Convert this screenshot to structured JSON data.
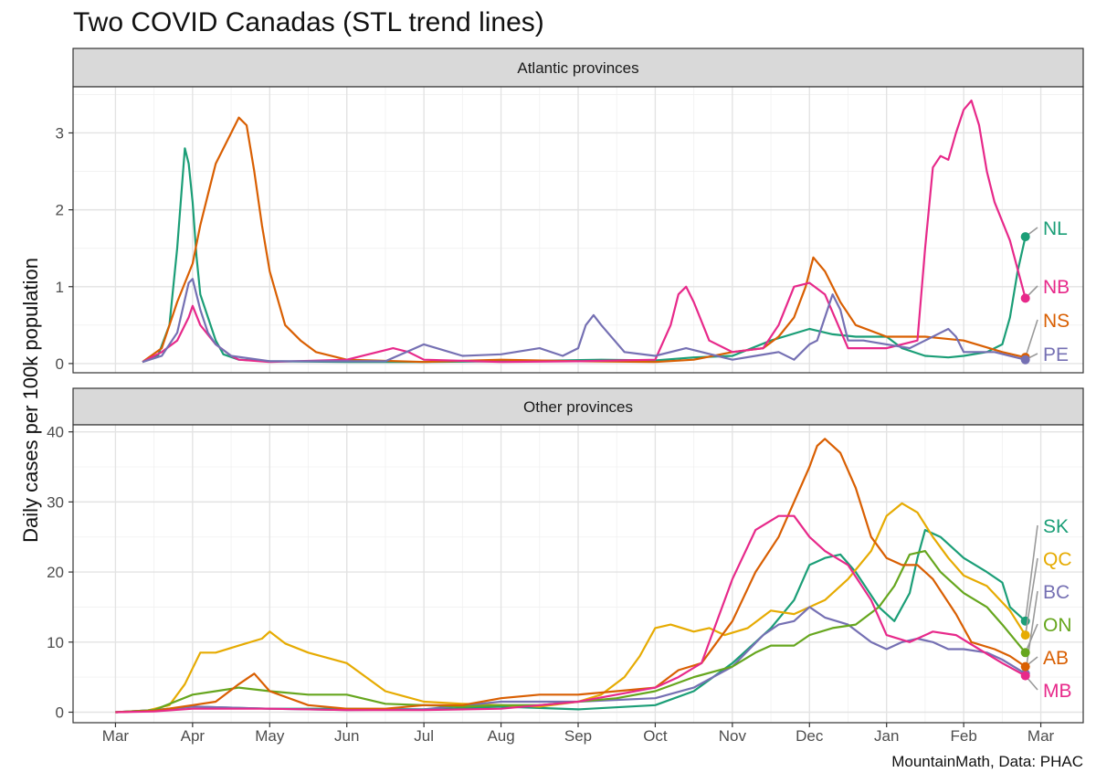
{
  "title": "Two COVID Canadas (STL trend lines)",
  "ylabel": "Daily cases per 100k population",
  "caption": "MountainMath, Data: PHAC",
  "chart_data": {
    "type": "line",
    "x_tick_labels": [
      "Mar",
      "Apr",
      "May",
      "Jun",
      "Jul",
      "Aug",
      "Sep",
      "Oct",
      "Nov",
      "Dec",
      "Jan",
      "Feb",
      "Mar"
    ],
    "grid": true,
    "panels": [
      {
        "strip": "Atlantic provinces",
        "ylim": [
          -0.12,
          3.6
        ],
        "y_ticks": [
          0,
          1,
          2,
          3
        ],
        "series": [
          {
            "name": "NL",
            "color": "#1b9e77",
            "x": [
              0.35,
              0.55,
              0.7,
              0.8,
              0.9,
              0.95,
              1.0,
              1.05,
              1.1,
              1.2,
              1.3,
              1.4,
              1.6,
              2,
              3,
              4,
              5,
              5.8,
              6.3,
              7,
              7.5,
              8,
              8.5,
              9,
              9.3,
              9.6,
              10,
              10.2,
              10.5,
              10.8,
              11,
              11.3,
              11.5,
              11.6,
              11.7,
              11.8
            ],
            "y": [
              0.02,
              0.1,
              0.5,
              1.5,
              2.8,
              2.6,
              2.1,
              1.4,
              0.9,
              0.6,
              0.3,
              0.12,
              0.05,
              0.03,
              0.02,
              0.02,
              0.03,
              0.04,
              0.05,
              0.04,
              0.08,
              0.1,
              0.3,
              0.45,
              0.38,
              0.35,
              0.35,
              0.2,
              0.1,
              0.08,
              0.1,
              0.15,
              0.25,
              0.6,
              1.2,
              1.65
            ]
          },
          {
            "name": "NS",
            "color": "#d95f02",
            "x": [
              0.35,
              0.6,
              0.8,
              1.0,
              1.1,
              1.2,
              1.3,
              1.5,
              1.6,
              1.7,
              1.8,
              1.9,
              2.0,
              2.2,
              2.4,
              2.6,
              3,
              4,
              5,
              6,
              7,
              7.5,
              8,
              8.4,
              8.6,
              8.8,
              8.95,
              9.05,
              9.2,
              9.4,
              9.6,
              10,
              10.5,
              11,
              11.5,
              11.8
            ],
            "y": [
              0.02,
              0.2,
              0.8,
              1.3,
              1.8,
              2.2,
              2.6,
              3.0,
              3.2,
              3.1,
              2.5,
              1.8,
              1.2,
              0.5,
              0.3,
              0.15,
              0.05,
              0.02,
              0.05,
              0.03,
              0.02,
              0.05,
              0.15,
              0.2,
              0.35,
              0.6,
              1.0,
              1.38,
              1.2,
              0.8,
              0.5,
              0.35,
              0.35,
              0.3,
              0.15,
              0.08
            ]
          },
          {
            "name": "NB",
            "color": "#e7298a",
            "x": [
              0.35,
              0.6,
              0.8,
              0.95,
              1.0,
              1.1,
              1.3,
              1.5,
              1.6,
              2,
              3,
              3.4,
              3.6,
              3.8,
              4,
              5,
              6,
              7,
              7.2,
              7.3,
              7.4,
              7.5,
              7.7,
              8,
              8.4,
              8.6,
              8.8,
              9.0,
              9.2,
              9.5,
              10,
              10.4,
              10.5,
              10.6,
              10.7,
              10.8,
              10.9,
              11,
              11.1,
              11.2,
              11.3,
              11.4,
              11.6,
              11.8
            ],
            "y": [
              0.02,
              0.15,
              0.3,
              0.6,
              0.75,
              0.5,
              0.25,
              0.1,
              0.05,
              0.02,
              0.05,
              0.15,
              0.2,
              0.15,
              0.05,
              0.02,
              0.03,
              0.05,
              0.5,
              0.9,
              1.0,
              0.8,
              0.3,
              0.15,
              0.2,
              0.5,
              1.0,
              1.05,
              0.9,
              0.2,
              0.2,
              0.3,
              1.5,
              2.55,
              2.7,
              2.65,
              3.0,
              3.3,
              3.42,
              3.1,
              2.5,
              2.1,
              1.6,
              0.85
            ]
          },
          {
            "name": "PE",
            "color": "#7570b3",
            "x": [
              0.35,
              0.6,
              0.8,
              0.95,
              1.0,
              1.1,
              1.2,
              1.3,
              1.5,
              2,
              3,
              3.5,
              4,
              4.5,
              5,
              5.5,
              5.8,
              6,
              6.1,
              6.2,
              6.3,
              6.6,
              7,
              7.4,
              7.8,
              8,
              8.3,
              8.6,
              8.8,
              9.0,
              9.1,
              9.2,
              9.3,
              9.4,
              9.5,
              9.7,
              10,
              10.3,
              10.5,
              10.7,
              10.8,
              10.9,
              11,
              11.2,
              11.4,
              11.6,
              11.8
            ],
            "y": [
              0.02,
              0.1,
              0.4,
              1.05,
              1.1,
              0.7,
              0.4,
              0.25,
              0.1,
              0.03,
              0.03,
              0.03,
              0.25,
              0.1,
              0.12,
              0.2,
              0.1,
              0.2,
              0.5,
              0.63,
              0.5,
              0.15,
              0.1,
              0.2,
              0.1,
              0.05,
              0.1,
              0.15,
              0.05,
              0.25,
              0.3,
              0.6,
              0.9,
              0.7,
              0.3,
              0.3,
              0.25,
              0.2,
              0.3,
              0.4,
              0.45,
              0.35,
              0.15,
              0.15,
              0.15,
              0.1,
              0.05
            ]
          }
        ]
      },
      {
        "strip": "Other provinces",
        "ylim": [
          -1.5,
          41
        ],
        "y_ticks": [
          0,
          10,
          20,
          30,
          40
        ],
        "series": [
          {
            "name": "SK",
            "color": "#1b9e77",
            "x": [
              0,
              0.5,
              1,
              2,
              3,
              4,
              5,
              6,
              7,
              7.5,
              8,
              8.5,
              8.8,
              9,
              9.2,
              9.4,
              9.6,
              9.9,
              10.1,
              10.3,
              10.4,
              10.5,
              10.7,
              11,
              11.3,
              11.5,
              11.6,
              11.8
            ],
            "y": [
              0,
              0.3,
              0.8,
              0.5,
              0.5,
              0.4,
              0.8,
              0.4,
              1,
              3,
              7,
              12,
              16,
              21,
              22,
              22.5,
              20,
              15,
              13,
              17,
              22,
              26,
              25,
              22,
              20,
              18.5,
              15,
              13
            ]
          },
          {
            "name": "QC",
            "color": "#e6ab02",
            "x": [
              0,
              0.4,
              0.7,
              0.9,
              1.1,
              1.3,
              1.6,
              1.9,
              2.0,
              2.2,
              2.5,
              3,
              3.5,
              4,
              4.5,
              5,
              5.5,
              6,
              6.3,
              6.6,
              6.8,
              7,
              7.2,
              7.5,
              7.7,
              7.9,
              8.2,
              8.5,
              8.8,
              9.2,
              9.5,
              9.8,
              10.0,
              10.2,
              10.4,
              10.6,
              10.8,
              11,
              11.3,
              11.6,
              11.8
            ],
            "y": [
              0,
              0.2,
              1,
              4,
              8.5,
              8.5,
              9.5,
              10.5,
              11.5,
              9.8,
              8.5,
              7,
              3,
              1.5,
              1.2,
              1,
              0.8,
              1.5,
              2.5,
              5,
              8,
              12,
              12.5,
              11.5,
              12,
              11,
              12,
              14.5,
              14,
              16,
              19,
              23,
              28,
              29.8,
              28.5,
              25,
              22,
              19.5,
              18,
              14.5,
              11
            ]
          },
          {
            "name": "BC",
            "color": "#7570b3",
            "x": [
              0,
              0.5,
              1,
              2,
              3,
              4,
              5,
              6,
              7,
              7.5,
              8,
              8.4,
              8.6,
              8.8,
              9,
              9.2,
              9.5,
              9.8,
              10,
              10.2,
              10.4,
              10.6,
              10.8,
              11,
              11.3,
              11.5,
              11.8
            ],
            "y": [
              0,
              0.3,
              0.8,
              0.5,
              0.3,
              0.4,
              1.5,
              1.5,
              2,
              3.5,
              6.5,
              11,
              12.5,
              13,
              15,
              13.5,
              12.5,
              10,
              9,
              10,
              10.5,
              10,
              9,
              9,
              8.5,
              7.5,
              5.5
            ]
          },
          {
            "name": "ON",
            "color": "#66a61e",
            "x": [
              0,
              0.5,
              1,
              1.3,
              1.6,
              2,
              2.5,
              3,
              3.5,
              4,
              4.5,
              5,
              5.5,
              6,
              6.5,
              7,
              7.5,
              8,
              8.3,
              8.5,
              8.8,
              9,
              9.3,
              9.6,
              9.9,
              10.1,
              10.3,
              10.5,
              10.7,
              11,
              11.3,
              11.5,
              11.8
            ],
            "y": [
              0,
              0.3,
              2.5,
              3,
              3.5,
              3,
              2.5,
              2.5,
              1.2,
              1,
              0.8,
              1,
              1,
              1.5,
              2,
              3,
              5,
              6.5,
              8.5,
              9.5,
              9.5,
              11,
              12,
              12.5,
              15,
              18,
              22.5,
              23,
              20,
              17,
              15,
              12.5,
              8.5
            ]
          },
          {
            "name": "AB",
            "color": "#d95f02",
            "x": [
              0,
              0.5,
              1,
              1.3,
              1.6,
              1.8,
              2,
              2.5,
              3,
              3.5,
              4,
              4.5,
              5,
              5.5,
              6,
              6.5,
              7,
              7.3,
              7.6,
              8,
              8.3,
              8.6,
              8.8,
              9.0,
              9.1,
              9.2,
              9.4,
              9.6,
              9.8,
              10,
              10.2,
              10.4,
              10.6,
              10.9,
              11.1,
              11.4,
              11.6,
              11.8
            ],
            "y": [
              0,
              0.2,
              1,
              1.5,
              4,
              5.5,
              3,
              1,
              0.5,
              0.5,
              1,
              1,
              2,
              2.5,
              2.5,
              3,
              3.5,
              6,
              7,
              13,
              20,
              25,
              30,
              35,
              38,
              39,
              37,
              32,
              25,
              22,
              21,
              21,
              19,
              14,
              10,
              9,
              8,
              6.5
            ]
          },
          {
            "name": "MB",
            "color": "#e7298a",
            "x": [
              0,
              0.5,
              1,
              2,
              3,
              4,
              5,
              6,
              7,
              7.3,
              7.6,
              8,
              8.3,
              8.6,
              8.8,
              9.0,
              9.2,
              9.5,
              9.8,
              10,
              10.3,
              10.6,
              10.9,
              11.2,
              11.5,
              11.8
            ],
            "y": [
              0,
              0.1,
              0.5,
              0.5,
              0.3,
              0.3,
              0.5,
              1.5,
              3.5,
              5,
              7,
              19,
              26,
              28,
              28,
              25,
              23,
              21,
              16,
              11,
              10,
              11.5,
              11,
              9,
              7,
              5.2
            ]
          }
        ]
      }
    ]
  }
}
